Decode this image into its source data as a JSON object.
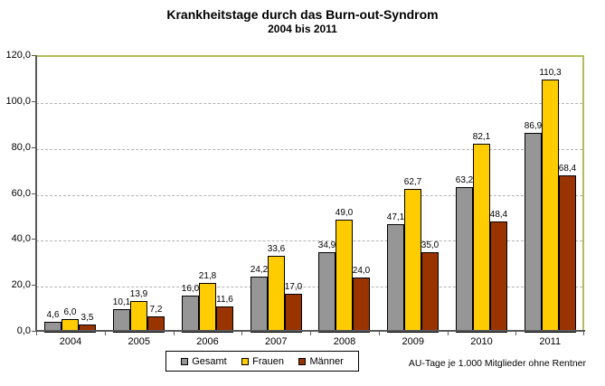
{
  "chart_data": {
    "type": "bar",
    "title": "Krankheitstage durch das Burn-out-Syndrom",
    "subtitle": "2004 bis 2011",
    "categories": [
      "2004",
      "2005",
      "2006",
      "2007",
      "2008",
      "2009",
      "2010",
      "2011"
    ],
    "series": [
      {
        "name": "Gesamt",
        "color": "#969696",
        "values": [
          4.6,
          10.1,
          16.0,
          24.2,
          34.9,
          47.1,
          63.2,
          86.9
        ]
      },
      {
        "name": "Frauen",
        "color": "#ffcc00",
        "values": [
          6.0,
          13.9,
          21.8,
          33.6,
          49.0,
          62.7,
          82.1,
          110.3
        ]
      },
      {
        "name": "Männer",
        "color": "#993300",
        "values": [
          3.5,
          7.2,
          11.6,
          17.0,
          24.0,
          35.0,
          48.4,
          68.4
        ]
      }
    ],
    "xlabel": "",
    "ylabel": "",
    "ylim": [
      0,
      120
    ],
    "ytick_step": 20,
    "ytick_labels": [
      "0,0",
      "20,0",
      "40,0",
      "60,0",
      "80,0",
      "100,0",
      "120,0"
    ],
    "grid": true,
    "gridline_style": "dashed",
    "legend_position": "bottom",
    "decimal_separator": ","
  },
  "footnote": "AU-Tage je 1.000 Mitglieder ohne Rentner",
  "colors": {
    "frame": "#b3bd5a",
    "axis": "#595959",
    "grid": "#b3b3b3",
    "bar_border": "#000000",
    "background": "#ffffff"
  }
}
